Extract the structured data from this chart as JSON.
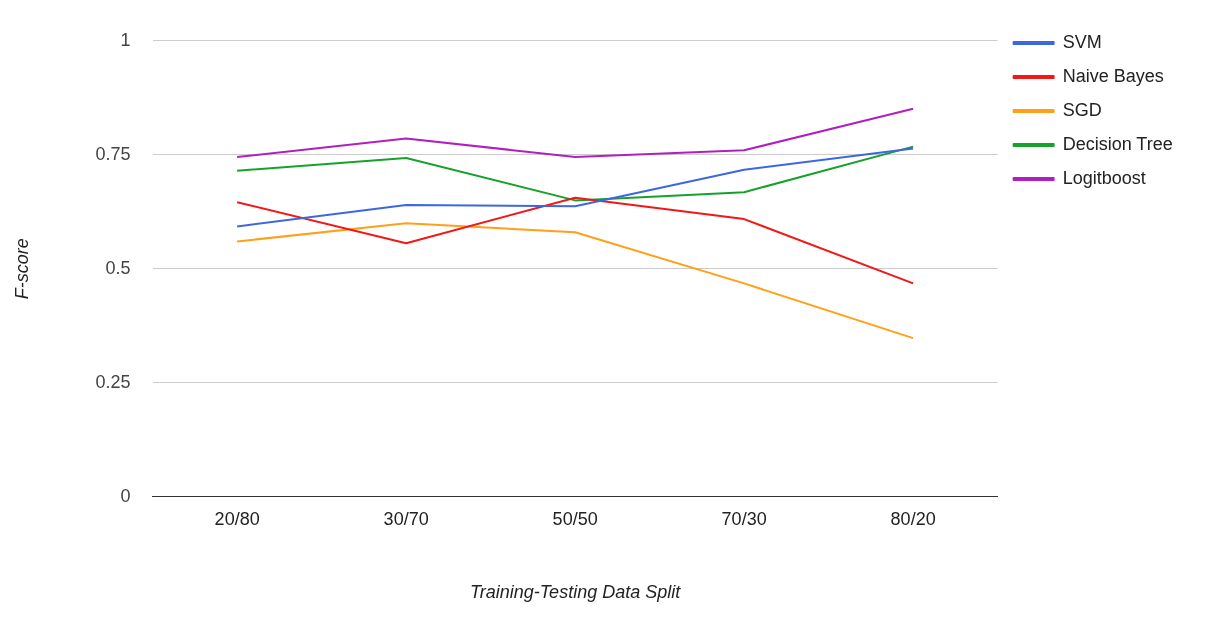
{
  "chart_data": {
    "type": "line",
    "xlabel": "Training-Testing Data Split",
    "ylabel": "F-score",
    "categories": [
      "20/80",
      "30/70",
      "50/50",
      "70/30",
      "80/20"
    ],
    "series": [
      {
        "name": "SVM",
        "color": "#3c67e0",
        "values": [
          0.593,
          0.64,
          0.637,
          0.717,
          0.764
        ]
      },
      {
        "name": "Naive Bayes",
        "color": "#f21818",
        "values": [
          0.646,
          0.556,
          0.656,
          0.609,
          0.468
        ]
      },
      {
        "name": "SGD",
        "color": "#ffa019",
        "values": [
          0.56,
          0.6,
          0.58,
          0.468,
          0.348
        ]
      },
      {
        "name": "Decision Tree",
        "color": "#16a22a",
        "values": [
          0.715,
          0.743,
          0.65,
          0.668,
          0.768
        ]
      },
      {
        "name": "Logitboost",
        "color": "#b020c0",
        "values": [
          0.745,
          0.786,
          0.745,
          0.76,
          0.851
        ]
      }
    ],
    "ylim": [
      0,
      1
    ],
    "yticks": [
      0,
      0.25,
      0.5,
      0.75,
      1
    ],
    "grid": "y",
    "legend": "right",
    "marker": "none",
    "line_style": "solid"
  }
}
